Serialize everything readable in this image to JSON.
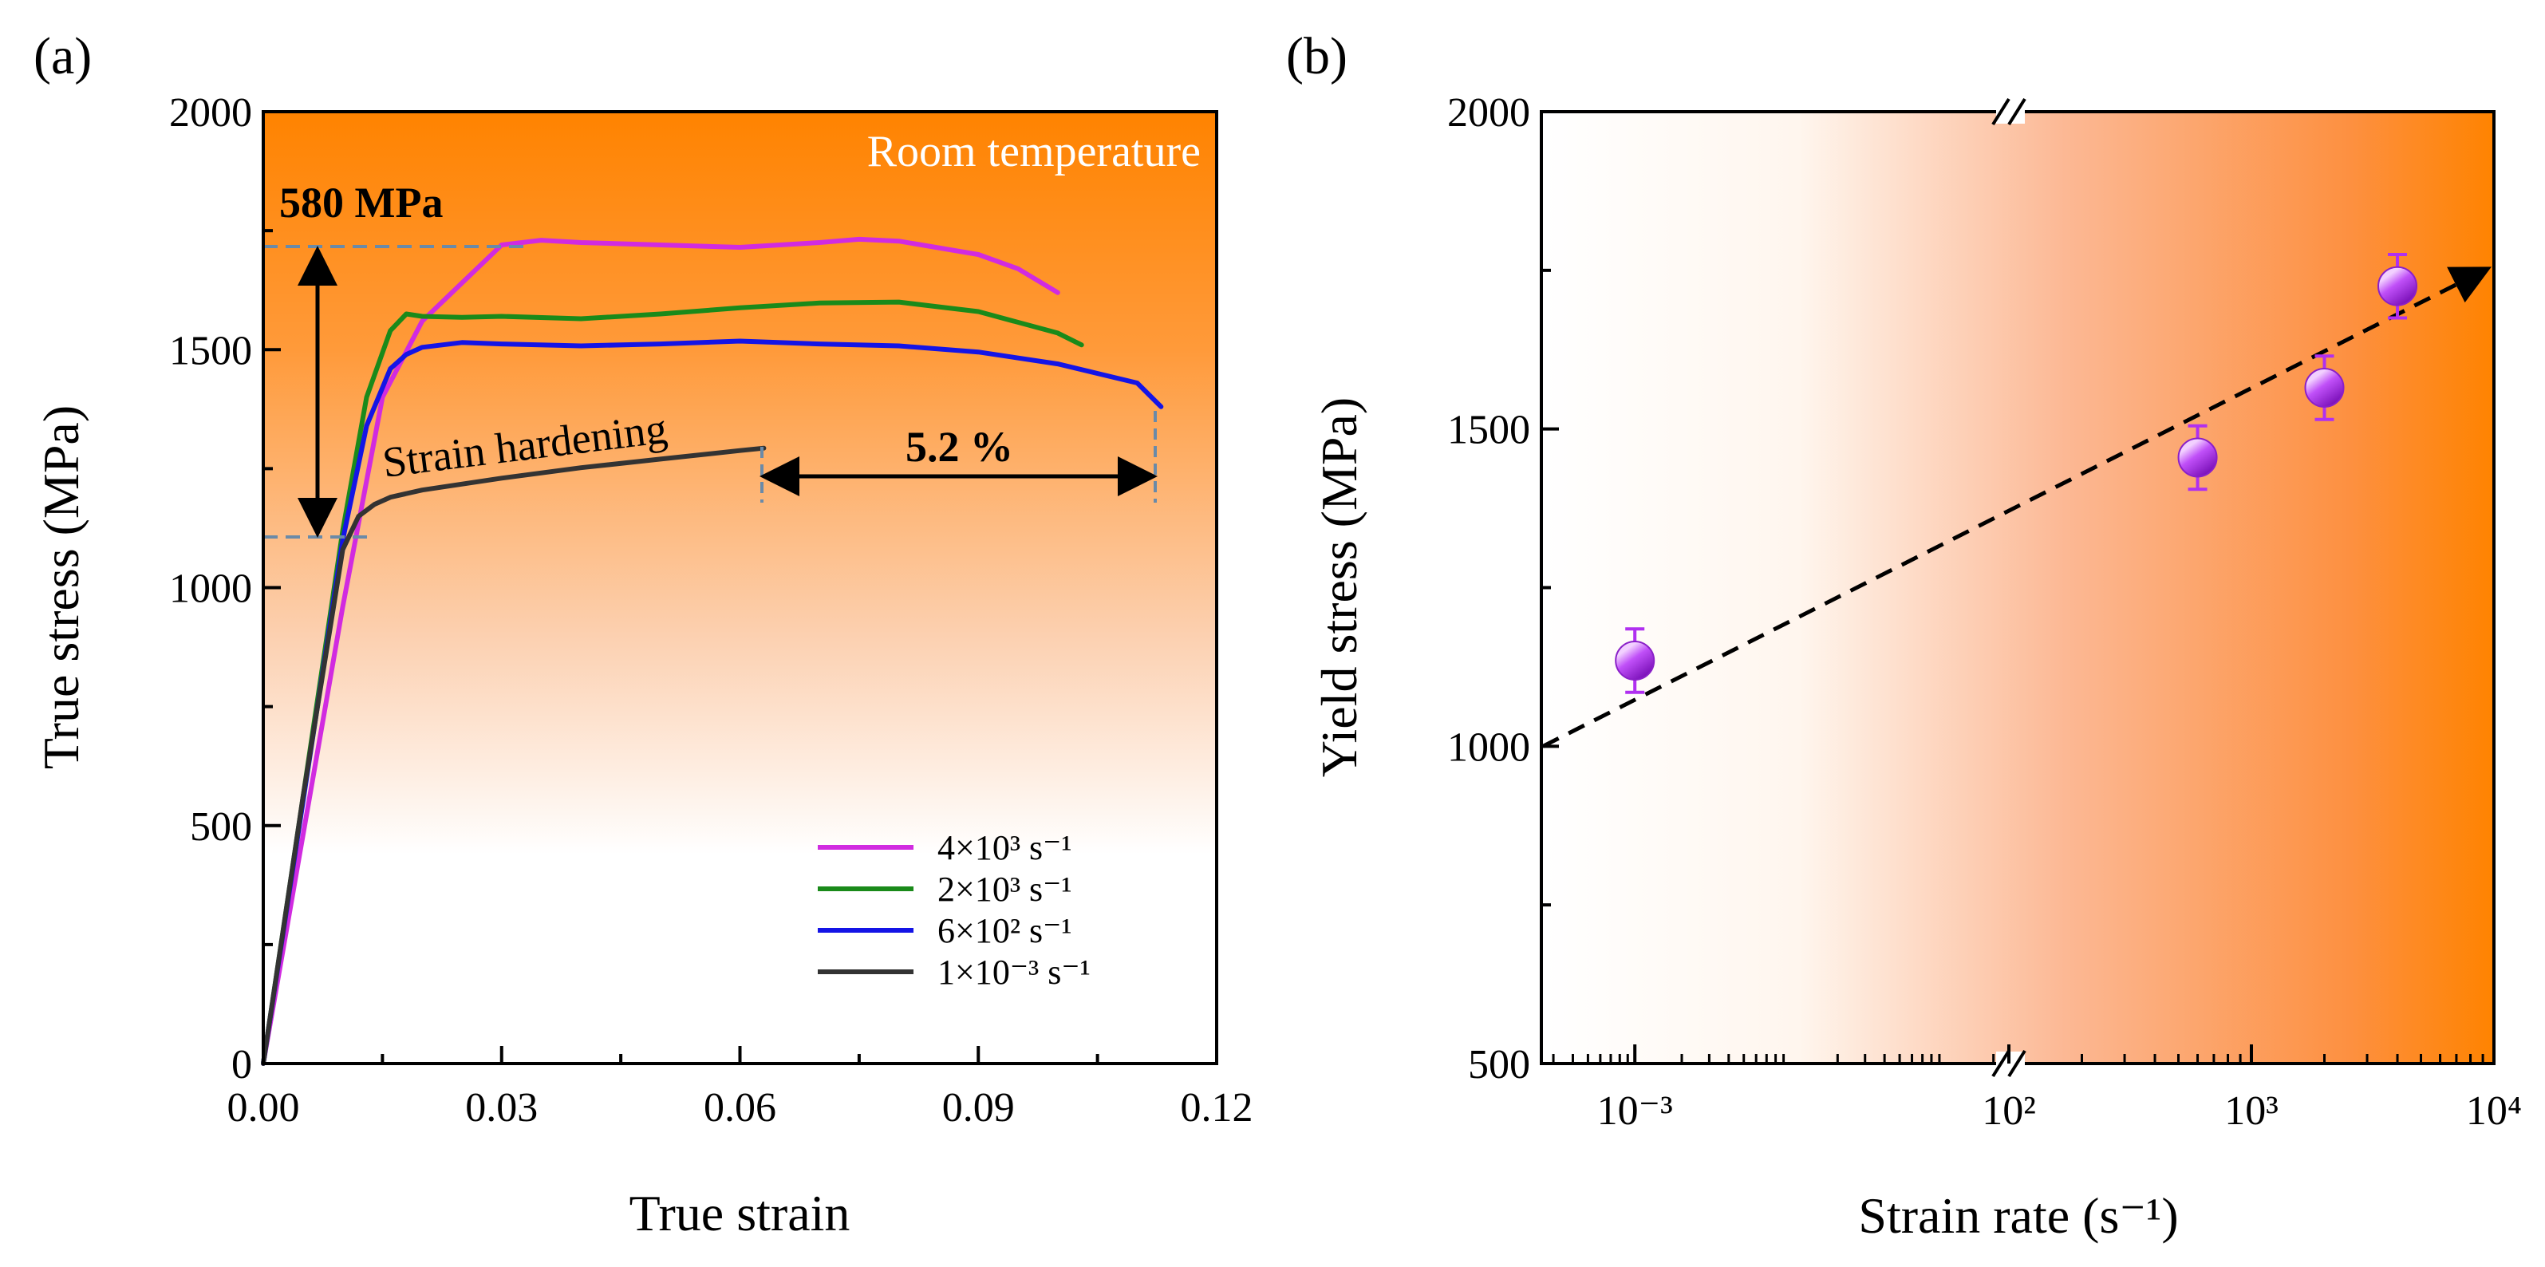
{
  "colors": {
    "bg_orange": "#ff8300",
    "bg_white": "#ffffff",
    "dashed_guide": "#6a8aa8"
  },
  "chart_data": [
    {
      "type": "line",
      "panel_label": "(a)",
      "xlabel": "True strain",
      "ylabel": "True stress (MPa)",
      "xlim": [
        0,
        0.12
      ],
      "ylim": [
        0,
        2000
      ],
      "x_ticks": [
        "0.00",
        "0.03",
        "0.06",
        "0.09",
        "0.12"
      ],
      "x_tick_values": [
        0,
        0.03,
        0.06,
        0.09,
        0.12
      ],
      "y_ticks": [
        "0",
        "500",
        "1000",
        "1500",
        "2000"
      ],
      "y_tick_values": [
        0,
        500,
        1000,
        1500,
        2000
      ],
      "legend_position": "lower-right",
      "annotations": {
        "background_label": "Room temperature",
        "stress_gap": "580 MPa",
        "hardening": "Strain hardening",
        "strain_gap": "5.2 %"
      },
      "series": [
        {
          "name": "4×10³ s⁻¹",
          "color": "#d12be0",
          "x": [
            0,
            0.005,
            0.01,
            0.015,
            0.02,
            0.025,
            0.03,
            0.035,
            0.04,
            0.05,
            0.06,
            0.07,
            0.075,
            0.08,
            0.09,
            0.095,
            0.1
          ],
          "y": [
            0,
            480,
            960,
            1400,
            1560,
            1640,
            1720,
            1730,
            1725,
            1720,
            1715,
            1725,
            1732,
            1728,
            1700,
            1670,
            1620
          ]
        },
        {
          "name": "2×10³ s⁻¹",
          "color": "#1a8a1a",
          "x": [
            0,
            0.005,
            0.01,
            0.013,
            0.016,
            0.018,
            0.02,
            0.025,
            0.03,
            0.04,
            0.05,
            0.06,
            0.07,
            0.08,
            0.09,
            0.1,
            0.103
          ],
          "y": [
            0,
            560,
            1120,
            1400,
            1540,
            1575,
            1570,
            1568,
            1570,
            1565,
            1575,
            1588,
            1598,
            1600,
            1580,
            1535,
            1510
          ]
        },
        {
          "name": "6×10² s⁻¹",
          "color": "#1414e6",
          "x": [
            0,
            0.005,
            0.01,
            0.013,
            0.016,
            0.018,
            0.02,
            0.025,
            0.03,
            0.04,
            0.05,
            0.06,
            0.07,
            0.08,
            0.09,
            0.1,
            0.11,
            0.113
          ],
          "y": [
            0,
            550,
            1100,
            1340,
            1460,
            1490,
            1505,
            1515,
            1512,
            1508,
            1512,
            1518,
            1512,
            1508,
            1495,
            1470,
            1430,
            1380
          ]
        },
        {
          "name": "1×10⁻³ s⁻¹",
          "color": "#333333",
          "x": [
            0,
            0.005,
            0.01,
            0.012,
            0.014,
            0.016,
            0.02,
            0.03,
            0.04,
            0.05,
            0.06,
            0.063
          ],
          "y": [
            0,
            560,
            1080,
            1150,
            1175,
            1190,
            1205,
            1230,
            1252,
            1270,
            1288,
            1293
          ]
        }
      ]
    },
    {
      "type": "scatter",
      "panel_label": "(b)",
      "xlabel": "Strain rate (s⁻¹)",
      "ylabel": "Yield stress (MPa)",
      "x_scale": "log with axis break between 10⁻³ and 10²",
      "ylim": [
        500,
        2000
      ],
      "y_ticks": [
        "500",
        "1000",
        "1500",
        "2000"
      ],
      "y_tick_values": [
        500,
        1000,
        1500,
        2000
      ],
      "x_ticks": [
        "10⁻³",
        "10²",
        "10³",
        "10⁴"
      ],
      "x_tick_values": [
        0.001,
        100,
        1000,
        10000
      ],
      "trend": "dashed arrow, increasing",
      "points": [
        {
          "x": 0.001,
          "y": 1135,
          "err": 50
        },
        {
          "x": 600,
          "y": 1455,
          "err": 50
        },
        {
          "x": 2000,
          "y": 1565,
          "err": 50
        },
        {
          "x": 4000,
          "y": 1725,
          "err": 50
        }
      ],
      "trend_line": {
        "start": {
          "x": 0.0004,
          "y": 1000
        },
        "end": {
          "x": 10000,
          "y": 1755
        }
      },
      "point_color": "#b030f0"
    }
  ]
}
